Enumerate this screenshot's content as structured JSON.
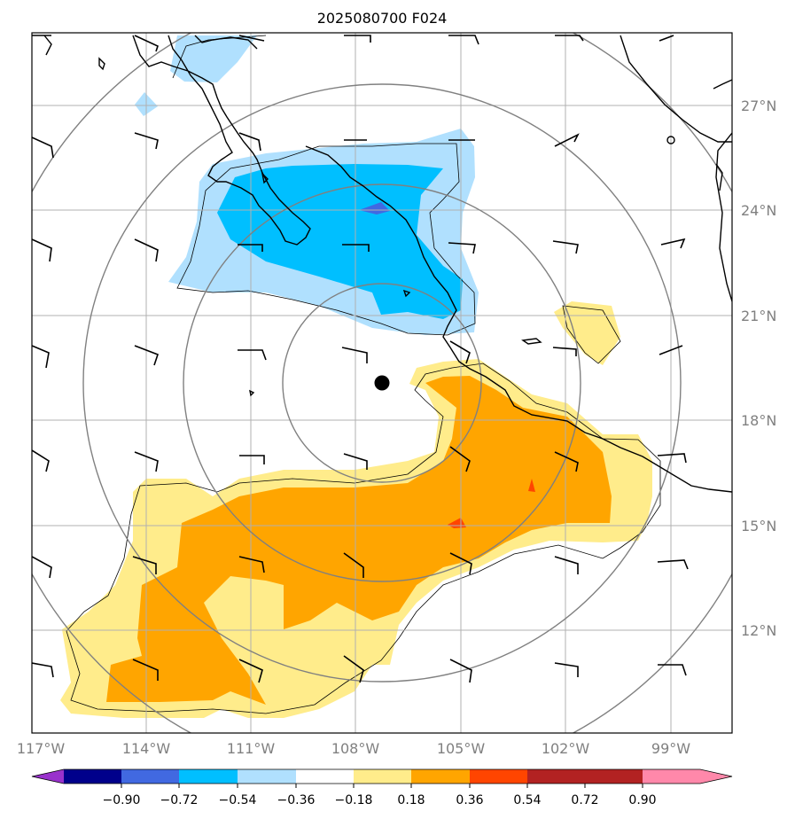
{
  "title": "2025080700 F024",
  "lat_labels": [
    "27°N",
    "24°N",
    "21°N",
    "18°N",
    "15°N",
    "12°N"
  ],
  "lon_labels": [
    "117°W",
    "114°W",
    "111°W",
    "108°W",
    "105°W",
    "102°W",
    "99°W"
  ],
  "colorbar": {
    "ticks": [
      "−0.90",
      "−0.72",
      "−0.54",
      "−0.36",
      "−0.18",
      "0.18",
      "0.36",
      "0.54",
      "0.72",
      "0.90"
    ],
    "colors": [
      "#9932cc",
      "#00008b",
      "#4169e1",
      "#00bfff",
      "#b0e0fe",
      "#ffffff",
      "#ffec8b",
      "#ffa500",
      "#ff4500",
      "#b22222",
      "#ff88aa"
    ]
  },
  "storm_center": {
    "lat": 19.0,
    "lon": -107.2
  },
  "contour_colors": {
    "light_blue": "#b0e0fe",
    "blue": "#00bfff",
    "royal_blue": "#4169e1",
    "light_yellow": "#ffec8b",
    "orange": "#ffa500",
    "red_orange": "#ff4500"
  }
}
